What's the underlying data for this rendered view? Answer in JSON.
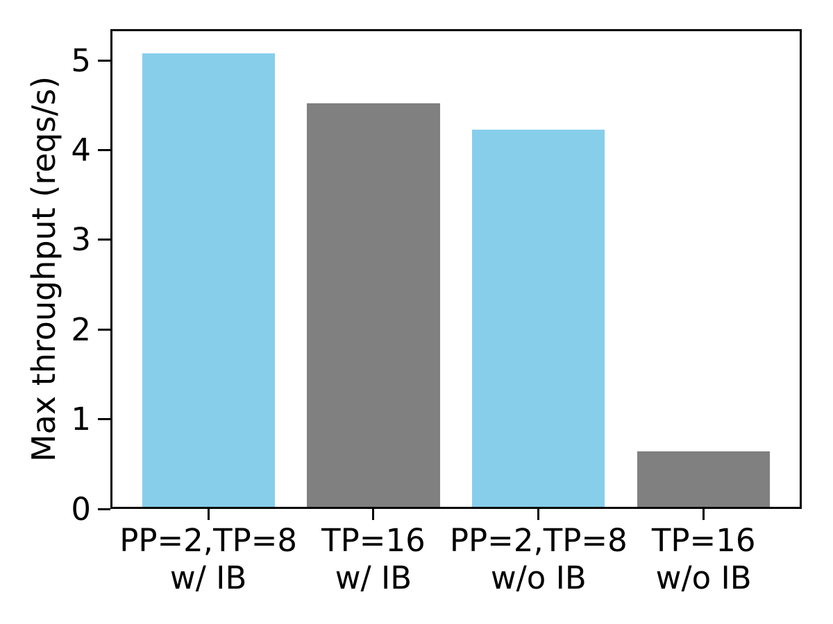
{
  "chart_data": {
    "type": "bar",
    "categories": [
      [
        "PP=2,TP=8",
        "w/ IB"
      ],
      [
        "TP=16",
        "w/ IB"
      ],
      [
        "PP=2,TP=8",
        "w/o IB"
      ],
      [
        "TP=16",
        "w/o IB"
      ]
    ],
    "values": [
      5.08,
      4.52,
      4.23,
      0.64
    ],
    "bar_colors": [
      "#87ceeb",
      "#808080",
      "#87ceeb",
      "#808080"
    ],
    "title": "",
    "xlabel": "",
    "ylabel": "Max throughput (reqs/s)",
    "ylim": [
      0,
      5.35
    ],
    "y_ticks": [
      0,
      1,
      2,
      3,
      4,
      5
    ],
    "grid": false,
    "legend_position": "none",
    "colors": {
      "skyblue_bar": "#87ceeb",
      "gray_bar": "#808080",
      "axis": "#000000",
      "background": "#ffffff"
    }
  }
}
